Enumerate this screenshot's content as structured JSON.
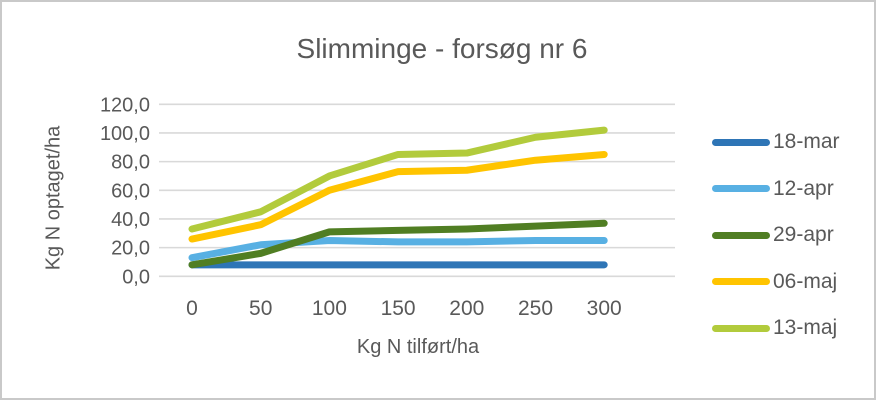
{
  "frame": {
    "background": "#ffffff",
    "border_color": "#c9c9c9"
  },
  "chart_data": {
    "type": "line",
    "title": "Slimminge - forsøg nr 6",
    "xlabel": "Kg N tilført/ha",
    "ylabel": "Kg N optaget/ha",
    "categories": [
      0,
      50,
      100,
      150,
      200,
      250,
      300
    ],
    "x_tick_labels": [
      "0",
      "50",
      "100",
      "150",
      "200",
      "250",
      "300"
    ],
    "y_ticks": [
      0,
      20,
      40,
      60,
      80,
      100,
      120
    ],
    "y_tick_labels": [
      "0,0",
      "20,0",
      "40,0",
      "60,0",
      "80,0",
      "100,0",
      "120,0"
    ],
    "ylim": [
      0,
      120
    ],
    "grid": true,
    "legend_position": "right",
    "text_color": "#595959",
    "gridline_color": "#d9d9d9",
    "series": [
      {
        "name": "18-mar",
        "color": "#2e75b6",
        "values": [
          8,
          8,
          8,
          8,
          8,
          8,
          8
        ]
      },
      {
        "name": "12-apr",
        "color": "#58b0e3",
        "values": [
          13,
          22,
          25,
          24,
          24,
          25,
          25
        ]
      },
      {
        "name": "29-apr",
        "color": "#507e23",
        "values": [
          8,
          16,
          31,
          32,
          33,
          35,
          37
        ]
      },
      {
        "name": "06-maj",
        "color": "#ffc400",
        "values": [
          26,
          36,
          60,
          73,
          74,
          81,
          85
        ]
      },
      {
        "name": "13-maj",
        "color": "#b2cb3c",
        "values": [
          33,
          45,
          70,
          85,
          86,
          97,
          102
        ]
      }
    ]
  }
}
